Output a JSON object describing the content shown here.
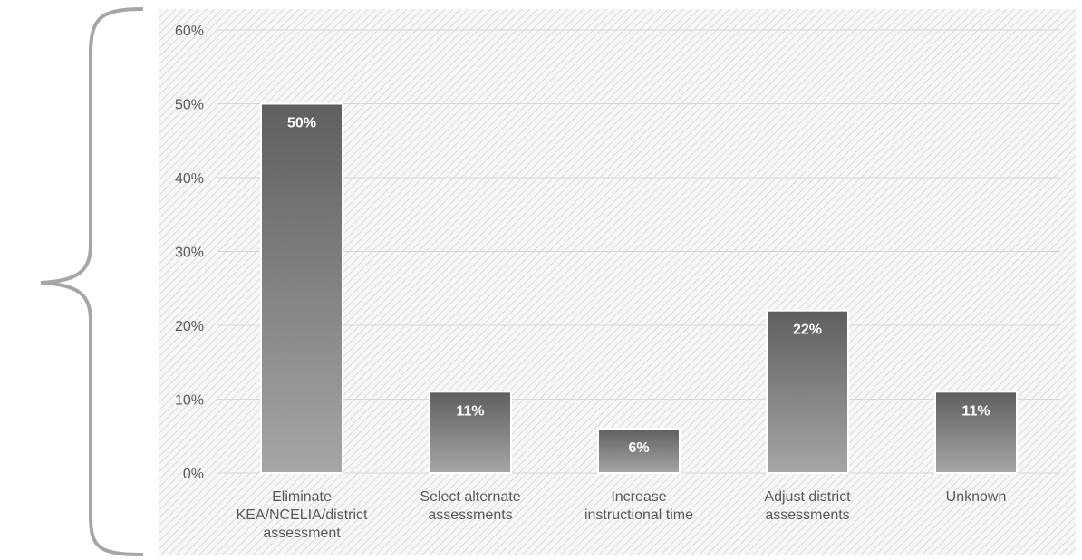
{
  "chart_data": {
    "type": "bar",
    "categories": [
      [
        "Eliminate",
        "KEA/NCELIA/district",
        "assessment"
      ],
      [
        "Select alternate",
        "assessments"
      ],
      [
        "Increase",
        "instructional time"
      ],
      [
        "Adjust district",
        "assessments"
      ],
      [
        "Unknown"
      ]
    ],
    "values": [
      50,
      11,
      6,
      22,
      11
    ],
    "data_labels": [
      "50%",
      "11%",
      "6%",
      "22%",
      "11%"
    ],
    "y_ticks": [
      "0%",
      "10%",
      "20%",
      "30%",
      "40%",
      "50%",
      "60%"
    ],
    "ylim": [
      0,
      60
    ],
    "grid": true,
    "legend": "none",
    "title": "",
    "xlabel": "",
    "ylabel": ""
  },
  "colors": {
    "bar_top": "#5f5f5f",
    "bar_bottom": "#a6a6a6",
    "bar_border": "#ffffff",
    "gridline": "#d9d9d9",
    "plot_hatch": "#d6d6d6",
    "plot_bg": "#f7f7f7",
    "brace": "#a6a6a6",
    "text": "#595959"
  }
}
